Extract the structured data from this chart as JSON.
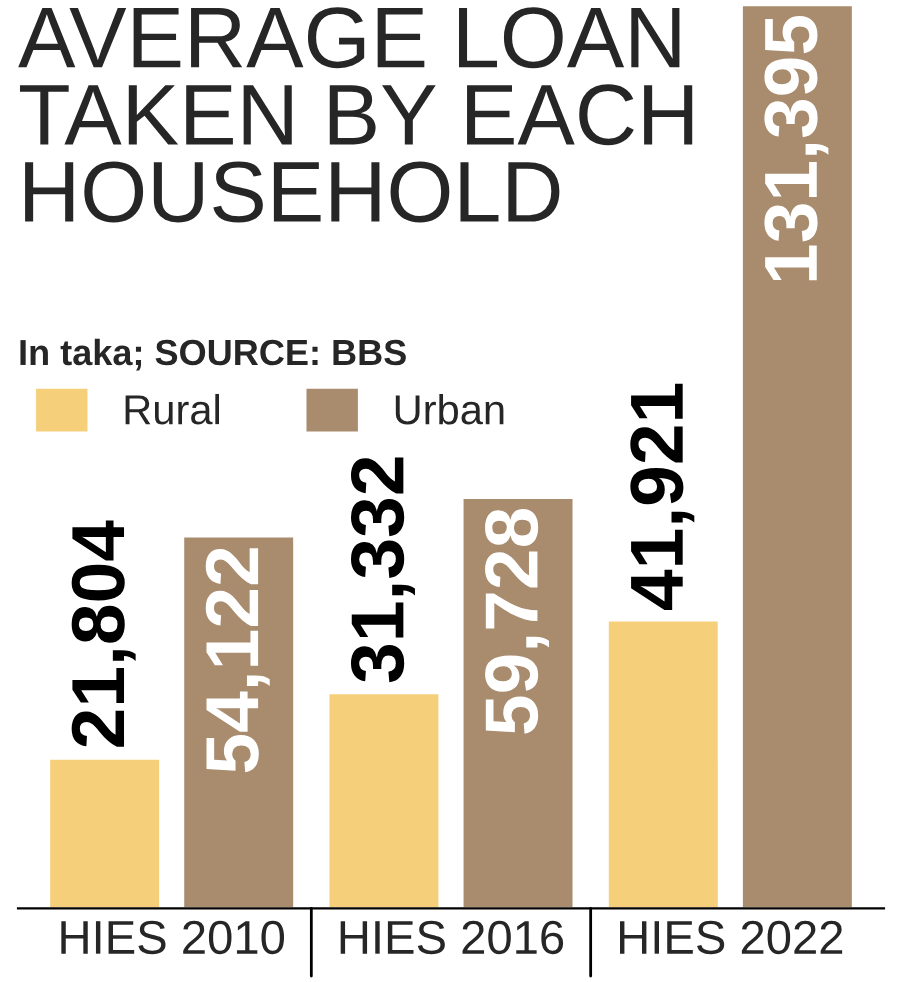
{
  "chart_data": {
    "type": "bar",
    "title": "AVERAGE LOAN\nTAKEN BY EACH\nHOUSEHOLD",
    "subtitle": "In taka; SOURCE: BBS",
    "categories": [
      "HIES 2010",
      "HIES 2016",
      "HIES 2022"
    ],
    "series": [
      {
        "name": "Rural",
        "color": "#f6cf7a",
        "values": [
          21804,
          31332,
          41921
        ],
        "value_labels": [
          "21,804",
          "31,332",
          "41,921"
        ]
      },
      {
        "name": "Urban",
        "color": "#a98b6d",
        "values": [
          54122,
          59728,
          131395
        ],
        "value_labels": [
          "54,122",
          "59,728",
          "131,395"
        ]
      }
    ],
    "legend": "top left"
  }
}
